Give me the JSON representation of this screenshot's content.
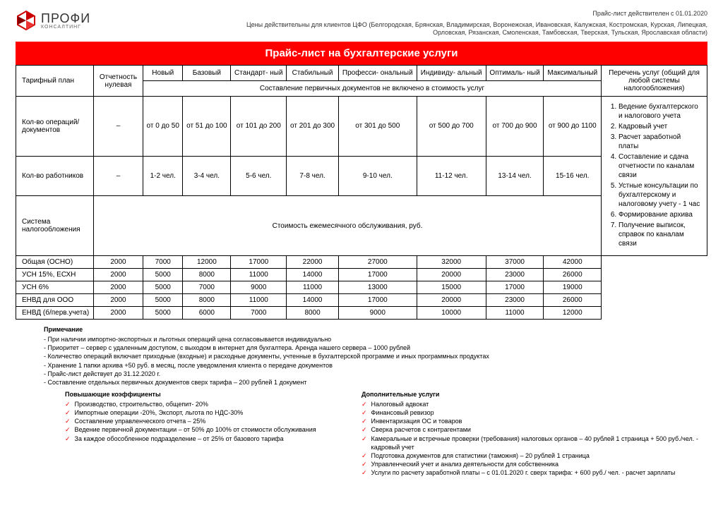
{
  "logo": {
    "main": "ПРОФИ",
    "sub": "КОНСАЛТИНГ"
  },
  "header": {
    "valid_from": "Прайс-лист действителен с 01.01.2020",
    "regions": "Цены действительны для клиентов ЦФО (Белгородская, Брянская, Владимирская, Воронежская, Ивановская, Калужская, Костромская, Курская, Липецкая, Орловская, Рязанская, Смоленская, Тамбовская, Тверская, Тульская, Ярославская области)"
  },
  "title": "Прайс-лист на бухгалтерские услуги",
  "col_tariff": "Тарифный план",
  "col_zero": "Отчетность нулевая",
  "plans": [
    "Новый",
    "Базовый",
    "Стандарт-\nный",
    "Стабильный",
    "Професси-\nональный",
    "Индивиду-\nальный",
    "Оптималь-\nный",
    "Максимальный"
  ],
  "services_header": "Перечень услуг (общий для любой системы налогообложения)",
  "primary_docs_note": "Составление первичных документов не включено в стоимость услуг",
  "row_ops": "Кол-во операций/ документов",
  "ops_values": [
    "–",
    "от 0 до 50",
    "от 51 до 100",
    "от 101 до 200",
    "от 201 до 300",
    "от 301 до 500",
    "от 500 до 700",
    "от 700 до 900",
    "от 900 до 1100"
  ],
  "row_workers": "Кол-во работников",
  "workers_values": [
    "–",
    "1-2 чел.",
    "3-4 чел.",
    "5-6 чел.",
    "7-8 чел.",
    "9-10 чел.",
    "11-12 чел.",
    "13-14 чел.",
    "15-16 чел."
  ],
  "row_tax": "Система налогообложения",
  "monthly_cost": "Стоимость ежемесячного обслуживания, руб.",
  "prices": [
    {
      "label": "Общая (ОСНО)",
      "v": [
        "2000",
        "7000",
        "12000",
        "17000",
        "22000",
        "27000",
        "32000",
        "37000",
        "42000"
      ]
    },
    {
      "label": "УСН 15%, ЕСХН",
      "v": [
        "2000",
        "5000",
        "8000",
        "11000",
        "14000",
        "17000",
        "20000",
        "23000",
        "26000"
      ]
    },
    {
      "label": "УСН 6%",
      "v": [
        "2000",
        "5000",
        "7000",
        "9000",
        "11000",
        "13000",
        "15000",
        "17000",
        "19000"
      ]
    },
    {
      "label": "ЕНВД для ООО",
      "v": [
        "2000",
        "5000",
        "8000",
        "11000",
        "14000",
        "17000",
        "20000",
        "23000",
        "26000"
      ]
    },
    {
      "label": "ЕНВД (б/перв.учета)",
      "v": [
        "2000",
        "5000",
        "6000",
        "7000",
        "8000",
        "9000",
        "10000",
        "11000",
        "12000"
      ]
    }
  ],
  "services_list": [
    "Ведение бухгалтерского и налогового учета",
    "Кадровый учет",
    "Расчет заработной платы",
    "Составление и сдача отчетности по каналам связи",
    "Устные консультации по бухгалтерскому и налоговому учету - 1 час",
    "Формирование архива",
    "Получение выписок, справок по каналам связи"
  ],
  "notes": {
    "title": "Примечание",
    "items": [
      "- При наличии импортно-экспортных и льготных операций цена согласовывается индивидуально",
      "- Приоритет – сервер с удаленным доступом, с выходом в интернет для бухгалтера. Аренда нашего сервера – 1000 рублей",
      "- Количество операций включает приходные (входные) и расходные документы, учтенные в бухгалтерской программе и иных программных продуктах",
      "- Хранение 1 папки архива +50 руб. в месяц, после уведомления клиента о передаче документов",
      "- Прайс-лист действует до 31.12.2020 г.",
      "- Составление отдельных первичных документов сверх тарифа – 200 рублей 1 документ"
    ]
  },
  "coeff": {
    "title": "Повышающие коэффициенты",
    "items": [
      "Производство, строительство, общепит- 20%",
      "Импортные операции -20%, Экспорт, льгота по НДС-30%",
      "Составление управленческого отчета – 25%",
      "Ведение первичной документации – от 50% до 100% от стоимости обслуживания",
      "За каждое обособленное подразделение – от 25% от базового тарифа"
    ]
  },
  "extra": {
    "title": "Дополнительные услуги",
    "items": [
      "Налоговый адвокат",
      "Финансовый ревизор",
      "Инвентаризация ОС и товаров",
      "Сверка расчетов с контрагентами",
      "Камеральные и встречные проверки (требования) налоговых органов – 40 рублей 1 страница + 500 руб./чел. - кадровый учет",
      "Подготовка документов для статистики (таможня) – 20 рублей 1 страница",
      "Управленческий учет и анализ деятельности для собственника",
      "Услуги по расчету заработной платы –  с 01.01.2020 г. сверх тарифа: + 600 руб./ чел. - расчет зарплаты"
    ]
  },
  "colors": {
    "title_bg": "#ff0000",
    "check": "#ff0000"
  }
}
